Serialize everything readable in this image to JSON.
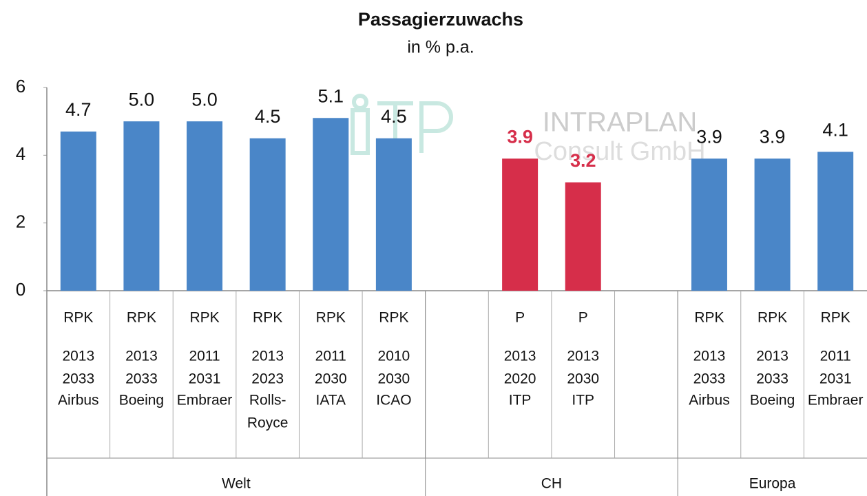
{
  "chart_data": {
    "type": "bar",
    "title": "Passagierzuwachs",
    "subtitle": "in % p.a.",
    "watermark": [
      "INTRAPLAN",
      "Consult GmbH"
    ],
    "categories": [
      [
        "RPK",
        "2013",
        "2033",
        "Airbus"
      ],
      [
        "RPK",
        "2013",
        "2033",
        "Boeing"
      ],
      [
        "RPK",
        "2011",
        "2031",
        "Embraer"
      ],
      [
        "RPK",
        "2013",
        "2023",
        "Rolls-",
        "Royce"
      ],
      [
        "RPK",
        "2011",
        "2030",
        "IATA"
      ],
      [
        "RPK",
        "2010",
        "2030",
        "ICAO"
      ],
      null,
      [
        "P",
        "2013",
        "2020",
        "ITP"
      ],
      [
        "P",
        "2013",
        "2030",
        "ITP"
      ],
      null,
      [
        "RPK",
        "2013",
        "2033",
        "Airbus"
      ],
      [
        "RPK",
        "2013",
        "2033",
        "Boeing"
      ],
      [
        "RPK",
        "2011",
        "2031",
        "Embraer"
      ]
    ],
    "groups": [
      {
        "label": "Welt",
        "count": 6
      },
      {
        "label": "CH",
        "count": 4
      },
      {
        "label": "Europa",
        "count": 3
      }
    ],
    "values": [
      4.7,
      5.0,
      5.0,
      4.5,
      5.1,
      4.5,
      null,
      3.9,
      3.2,
      null,
      3.9,
      3.9,
      4.1
    ],
    "value_labels": [
      "4.7",
      "5.0",
      "5.0",
      "4.5",
      "5.1",
      "4.5",
      null,
      "3.9",
      "3.2",
      null,
      "3.9",
      "3.9",
      "4.1"
    ],
    "colors": [
      "#4a86c8",
      "#4a86c8",
      "#4a86c8",
      "#4a86c8",
      "#4a86c8",
      "#4a86c8",
      null,
      "#d62e4a",
      "#d62e4a",
      null,
      "#4a86c8",
      "#4a86c8",
      "#4a86c8"
    ],
    "ylim": [
      0,
      6
    ],
    "yticks": [
      0,
      2,
      4,
      6
    ]
  }
}
